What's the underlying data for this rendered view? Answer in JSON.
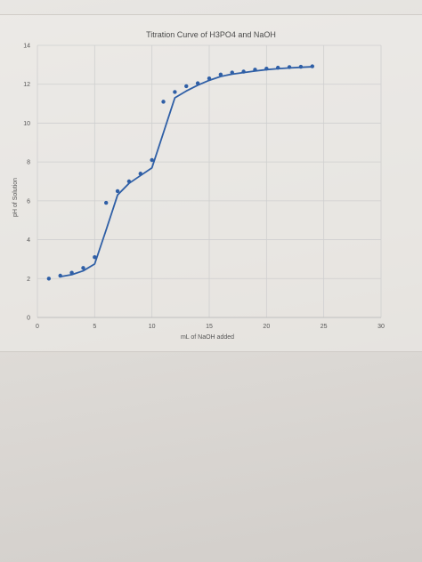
{
  "chart_data": {
    "type": "scatter",
    "title": "Titration Curve of H3PO4 and NaOH",
    "xlabel": "mL of NaOH added",
    "ylabel": "pH of Solution",
    "xlim": [
      0,
      30
    ],
    "ylim": [
      0,
      14
    ],
    "xticks": [
      0,
      5,
      10,
      15,
      20,
      25,
      30
    ],
    "yticks": [
      0,
      2,
      4,
      6,
      8,
      10,
      12,
      14
    ],
    "grid": true,
    "series": [
      {
        "kind": "points",
        "color": "#2f5fa6",
        "x": [
          1,
          2,
          3,
          4,
          5,
          6,
          7,
          8,
          9,
          10,
          11,
          12,
          13,
          14,
          15,
          16,
          17,
          18,
          19,
          20,
          21,
          22,
          23,
          24
        ],
        "y": [
          2.0,
          2.15,
          2.3,
          2.55,
          3.1,
          5.9,
          6.5,
          7.0,
          7.4,
          8.1,
          11.1,
          11.6,
          11.9,
          12.05,
          12.3,
          12.5,
          12.6,
          12.65,
          12.75,
          12.8,
          12.85,
          12.88,
          12.9,
          12.92
        ]
      },
      {
        "kind": "line",
        "color": "#2f5fa6",
        "x": [
          2,
          3,
          4,
          5,
          6,
          7,
          8,
          9,
          10,
          11,
          12,
          13,
          14,
          15,
          16,
          17,
          18,
          19,
          20,
          21,
          22,
          23,
          24
        ],
        "y": [
          2.1,
          2.2,
          2.4,
          2.75,
          4.5,
          6.3,
          6.9,
          7.3,
          7.7,
          9.5,
          11.3,
          11.65,
          11.95,
          12.2,
          12.4,
          12.52,
          12.6,
          12.68,
          12.75,
          12.8,
          12.84,
          12.87,
          12.9
        ]
      }
    ]
  }
}
